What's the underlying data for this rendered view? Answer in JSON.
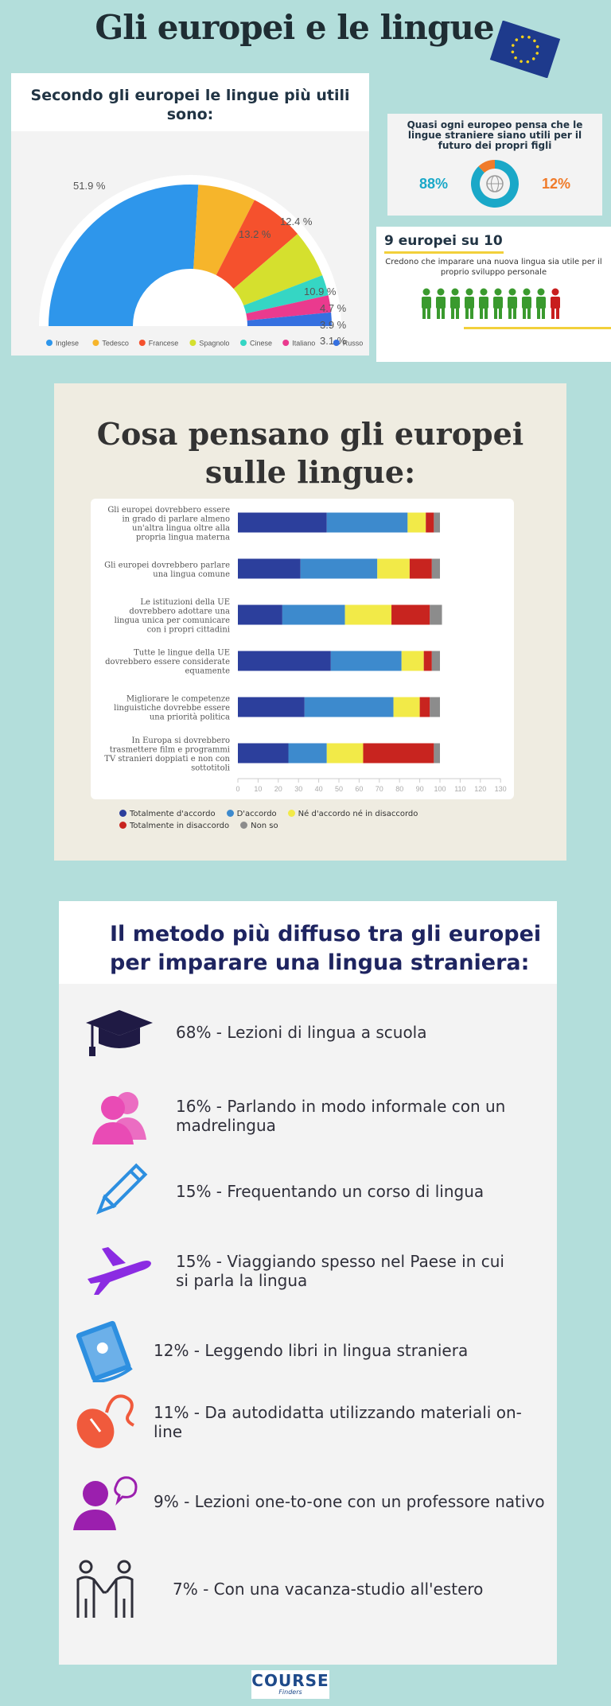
{
  "title": "Gli europei e le lingue",
  "panel_useful": {
    "title": "Secondo gli europei le lingue più utili sono:",
    "chart_data": {
      "type": "pie",
      "title": "Secondo gli europei le lingue più utili sono:",
      "categories": [
        "Inglese",
        "Tedesco",
        "Francese",
        "Spagnolo",
        "Cinese",
        "Italiano",
        "Russo"
      ],
      "values": [
        51.9,
        13.2,
        12.4,
        10.9,
        4.7,
        3.9,
        3.1
      ],
      "labels": [
        "51.9 %",
        "13.2 %",
        "12.4 %",
        "10.9 %",
        "4.7 %",
        "3.9 %",
        "3.1 %"
      ],
      "colors": [
        "#2e96eb",
        "#f6b52b",
        "#f5512d",
        "#d5e02e",
        "#35d6c4",
        "#ea3a8e",
        "#3570e0"
      ],
      "legend": "bottom"
    }
  },
  "panel_children": {
    "title": "Quasi ogni europeo pensa che le lingue straniere siano utili per il futuro dei propri figli",
    "chart_data": {
      "type": "pie",
      "categories": [
        "",
        ""
      ],
      "values": [
        88,
        12
      ],
      "labels": [
        "88%",
        "12%"
      ],
      "colors": [
        "#1aa8c8",
        "#f07b2a"
      ]
    }
  },
  "panel_nine": {
    "title": "9 europei su 10",
    "subtitle": "Credono che imparare una nuova lingua sia utile per il proprio sviluppo personale",
    "people_total": 10,
    "people_yes": 9,
    "color_yes": "#3a9a2e",
    "color_no": "#c81e1e"
  },
  "panel_opinions": {
    "title": "Cosa pensano gli europei sulle lingue:",
    "chart_data": {
      "type": "bar",
      "orientation": "horizontal",
      "stacked": true,
      "categories": [
        "Gli europei dovrebbero essere in grado di parlare almeno un'altra lingua oltre alla propria lingua materna",
        "Gli europei dovrebbero parlare una lingua comune",
        "Le istituzioni della UE dovrebbero adottare una lingua unica per comunicare con i propri cittadini",
        "Tutte le lingue della UE dovrebbero essere considerate equamente",
        "Migliorare le competenze linguistiche dovrebbe essere una priorità politica",
        "In Europa si dovrebbero trasmettere film e programmi TV stranieri doppiati e non con sottotitoli"
      ],
      "category_lines": [
        [
          "Gli europei dovrebbero essere",
          "in grado di parlare almeno",
          "un'altra lingua oltre alla",
          "propria lingua materna"
        ],
        [
          "Gli europei dovrebbero parlare",
          "una lingua comune"
        ],
        [
          "Le istituzioni della UE",
          "dovrebbero adottare una",
          "lingua unica per comunicare",
          "con i propri cittadini"
        ],
        [
          "Tutte le lingue della UE",
          "dovrebbero essere considerate",
          "equamente"
        ],
        [
          "Migliorare le competenze",
          "linguistiche dovrebbe essere",
          "una priorità politica"
        ],
        [
          "In Europa si dovrebbero",
          "trasmettere film e programmi",
          "TV stranieri doppiati e non con",
          "sottotitoli"
        ]
      ],
      "series": [
        {
          "name": "Totalmente d'accordo",
          "color": "#2c3f9c",
          "values": [
            44,
            31,
            22,
            46,
            33,
            25
          ]
        },
        {
          "name": "D'accordo",
          "color": "#3d8acd",
          "values": [
            40,
            38,
            31,
            35,
            44,
            19
          ]
        },
        {
          "name": "Né d'accordo né in disaccordo",
          "color": "#f2ea48",
          "values": [
            9,
            16,
            23,
            11,
            13,
            18
          ]
        },
        {
          "name": "Totalmente in disaccordo",
          "color": "#c8241f",
          "values": [
            4,
            11,
            19,
            4,
            5,
            35
          ]
        },
        {
          "name": "Non so",
          "color": "#8c8c8c",
          "values": [
            3,
            4,
            6,
            4,
            5,
            3
          ]
        }
      ],
      "xlim": [
        0,
        130
      ],
      "xticks": [
        0,
        10,
        20,
        30,
        40,
        50,
        60,
        70,
        80,
        90,
        100,
        110,
        120,
        130
      ],
      "legend": "bottom"
    }
  },
  "panel_methods": {
    "title_line1": "Il metodo più diffuso tra gli europei",
    "title_line2": "per imparare una lingua straniera:",
    "items": [
      {
        "icon": "graduation-cap-icon",
        "color": "#1f1a44",
        "text": "68% - Lezioni di lingua a scuola"
      },
      {
        "icon": "people-icon",
        "color": "#e94bb5",
        "text": "16% - Parlando in modo informale con un madrelingua"
      },
      {
        "icon": "pencil-icon",
        "color": "#2d8fe0",
        "text": "15% - Frequentando un corso di lingua"
      },
      {
        "icon": "airplane-icon",
        "color": "#8b2be2",
        "text": "15% - Viaggiando spesso nel Paese in cui si parla la lingua"
      },
      {
        "icon": "book-icon",
        "color": "#2d8fe0",
        "text": "12% - Leggendo libri in lingua straniera"
      },
      {
        "icon": "mouse-icon",
        "color": "#f05a3c",
        "text": "11% - Da autodidatta utilizzando materiali on-line"
      },
      {
        "icon": "speaking-person-icon",
        "color": "#9b1fae",
        "text": "9% - Lezioni one-to-one con un professore nativo"
      },
      {
        "icon": "handshake-icon",
        "color": "#2f2f3a",
        "text": "7% - Con una vacanza-studio all'estero"
      }
    ]
  },
  "logo": {
    "line1": "COURSE",
    "line2": "Finders"
  }
}
